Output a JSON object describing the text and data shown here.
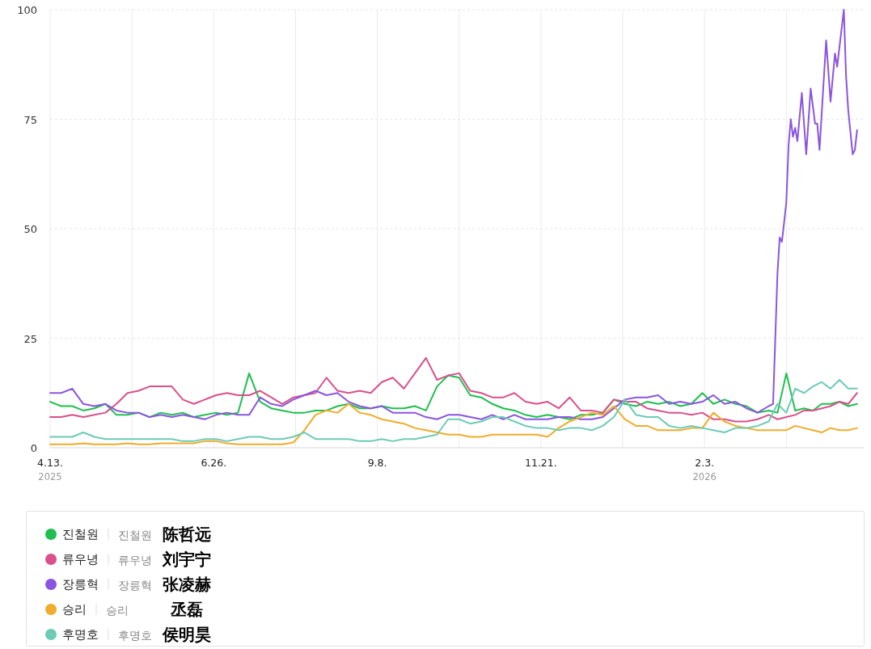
{
  "chart_data": {
    "type": "line",
    "x": [
      "2025-04-13",
      "2025-04-18",
      "2025-04-23",
      "2025-04-28",
      "2025-05-03",
      "2025-05-08",
      "2025-05-13",
      "2025-05-18",
      "2025-05-23",
      "2025-05-28",
      "2025-06-02",
      "2025-06-07",
      "2025-06-12",
      "2025-06-17",
      "2025-06-22",
      "2025-06-27",
      "2025-07-02",
      "2025-07-07",
      "2025-07-12",
      "2025-07-17",
      "2025-07-22",
      "2025-07-27",
      "2025-08-01",
      "2025-08-06",
      "2025-08-11",
      "2025-08-16",
      "2025-08-21",
      "2025-08-26",
      "2025-08-31",
      "2025-09-05",
      "2025-09-10",
      "2025-09-15",
      "2025-09-20",
      "2025-09-25",
      "2025-09-30",
      "2025-10-05",
      "2025-10-10",
      "2025-10-15",
      "2025-10-20",
      "2025-10-25",
      "2025-10-30",
      "2025-11-04",
      "2025-11-09",
      "2025-11-14",
      "2025-11-19",
      "2025-11-24",
      "2025-11-29",
      "2025-12-04",
      "2025-12-09",
      "2025-12-14",
      "2025-12-19",
      "2025-12-24",
      "2025-12-29",
      "2026-01-03",
      "2026-01-08",
      "2026-01-13",
      "2026-01-18",
      "2026-01-23",
      "2026-01-28",
      "2026-02-02",
      "2026-02-07",
      "2026-02-12",
      "2026-02-17",
      "2026-02-22",
      "2026-02-27",
      "2026-03-04",
      "2026-03-08",
      "2026-03-12",
      "2026-03-16",
      "2026-03-20",
      "2026-03-24",
      "2026-03-28",
      "2026-04-01",
      "2026-04-05",
      "2026-04-09",
      "2026-04-13"
    ],
    "series": [
      {
        "name": "진철원",
        "color": "#1fbf4f",
        "values": [
          10.5,
          9.5,
          9.5,
          8.5,
          9,
          10,
          7.5,
          7.5,
          8,
          7,
          8,
          7.5,
          8,
          7,
          7.5,
          8,
          7.5,
          8,
          17,
          10.5,
          9,
          8.5,
          8,
          8,
          8.5,
          8.5,
          9.5,
          10,
          9,
          9,
          9.5,
          9,
          9,
          9.5,
          8.5,
          14,
          16.5,
          16,
          12,
          11.5,
          10,
          9,
          8.5,
          7.5,
          7,
          7.5,
          7,
          6.5,
          7.5,
          7.5,
          8,
          11,
          10,
          9.5,
          10.5,
          10,
          10.5,
          9.5,
          10,
          12.5,
          10,
          11,
          10,
          9.5,
          8,
          8.5,
          8,
          17,
          8.5,
          9,
          8.5,
          10,
          10,
          10.5,
          9.5,
          10
        ]
      },
      {
        "name": "류우녕",
        "color": "#d9508a",
        "values": [
          7,
          7,
          7.5,
          7,
          7.5,
          8,
          10,
          12.5,
          13,
          14,
          14,
          14,
          11,
          10,
          11,
          12,
          12.5,
          12,
          12,
          13,
          11.5,
          10,
          11.5,
          12,
          12.5,
          16,
          13,
          12.5,
          13,
          12.5,
          15,
          16,
          13.5,
          17,
          20.5,
          15.5,
          16.5,
          17,
          13,
          12.5,
          11.5,
          11.5,
          12.5,
          10.5,
          10,
          10.5,
          9,
          11.5,
          8.5,
          8.5,
          8,
          11,
          10.5,
          10.5,
          9,
          8.5,
          8,
          8,
          7.5,
          8,
          6.5,
          6.5,
          6,
          6,
          6.5,
          7.5,
          6.5,
          7,
          7.5,
          8.5,
          8.5,
          9,
          9.5,
          10.5,
          10,
          12.5
        ]
      },
      {
        "name": "장릉혁",
        "color": "#8a55e0",
        "x": [
          "2025-04-13",
          "2025-04-18",
          "2025-04-23",
          "2025-04-28",
          "2025-05-03",
          "2025-05-08",
          "2025-05-13",
          "2025-05-18",
          "2025-05-23",
          "2025-05-28",
          "2025-06-02",
          "2025-06-07",
          "2025-06-12",
          "2025-06-17",
          "2025-06-22",
          "2025-06-27",
          "2025-07-02",
          "2025-07-07",
          "2025-07-12",
          "2025-07-17",
          "2025-07-22",
          "2025-07-27",
          "2025-08-01",
          "2025-08-06",
          "2025-08-11",
          "2025-08-16",
          "2025-08-21",
          "2025-08-26",
          "2025-08-31",
          "2025-09-05",
          "2025-09-10",
          "2025-09-15",
          "2025-09-20",
          "2025-09-25",
          "2025-09-30",
          "2025-10-05",
          "2025-10-10",
          "2025-10-15",
          "2025-10-20",
          "2025-10-25",
          "2025-10-30",
          "2025-11-04",
          "2025-11-09",
          "2025-11-14",
          "2025-11-19",
          "2025-11-24",
          "2025-11-29",
          "2025-12-04",
          "2025-12-09",
          "2025-12-14",
          "2025-12-19",
          "2025-12-24",
          "2025-12-29",
          "2026-01-03",
          "2026-01-08",
          "2026-01-13",
          "2026-01-18",
          "2026-01-23",
          "2026-01-28",
          "2026-02-02",
          "2026-02-07",
          "2026-02-12",
          "2026-02-17",
          "2026-02-22",
          "2026-02-27",
          "2026-03-04",
          "2026-03-06",
          "2026-03-08",
          "2026-03-09",
          "2026-03-10",
          "2026-03-12",
          "2026-03-13",
          "2026-03-14",
          "2026-03-15",
          "2026-03-16",
          "2026-03-17",
          "2026-03-19",
          "2026-03-21",
          "2026-03-23",
          "2026-03-25",
          "2026-03-26",
          "2026-03-27",
          "2026-03-30",
          "2026-04-01",
          "2026-04-03",
          "2026-04-04",
          "2026-04-07",
          "2026-04-08",
          "2026-04-09",
          "2026-04-11",
          "2026-04-12",
          "2026-04-13"
        ],
        "values": [
          12.5,
          12.5,
          13.5,
          10,
          9.5,
          10,
          8.5,
          8,
          8,
          7,
          7.5,
          7,
          7.5,
          7,
          6.5,
          7.5,
          8,
          7.5,
          7.5,
          11.5,
          10,
          9.5,
          11,
          12,
          13,
          12,
          12.5,
          10.5,
          9.5,
          9,
          9.5,
          8,
          8,
          8,
          7,
          6.5,
          7.5,
          7.5,
          7,
          6.5,
          7.5,
          6.5,
          7.5,
          6.5,
          6.5,
          6.5,
          7,
          7,
          6.5,
          6.5,
          7,
          9,
          11,
          11.5,
          11.5,
          12,
          10,
          10.5,
          10,
          10.5,
          12,
          10,
          10.5,
          9,
          8,
          9.5,
          10,
          40,
          48,
          47,
          56,
          69,
          75,
          71,
          73,
          70,
          81,
          67,
          82,
          74,
          74,
          68,
          93,
          79,
          90,
          87,
          100,
          85,
          77,
          67,
          68,
          72.5
        ]
      },
      {
        "name": "승리",
        "color": "#f0ac2a",
        "values": [
          0.8,
          0.8,
          0.8,
          1,
          0.8,
          0.8,
          0.8,
          1,
          0.8,
          0.8,
          1,
          1,
          1,
          1,
          1.5,
          1.5,
          1,
          0.8,
          0.8,
          0.8,
          0.8,
          0.8,
          1.2,
          4,
          7.5,
          8.5,
          8,
          10,
          8,
          7.5,
          6.5,
          6,
          5.5,
          4.5,
          4,
          3.5,
          3,
          3,
          2.5,
          2.5,
          3,
          3,
          3,
          3,
          3,
          2.5,
          4.5,
          6,
          7,
          8,
          7.5,
          9.5,
          6.5,
          5,
          5,
          4,
          4,
          4,
          4.5,
          4.5,
          8,
          6,
          5,
          4.5,
          4,
          4,
          4,
          4,
          5,
          4.5,
          4,
          3.5,
          4.5,
          4,
          4,
          4.5
        ]
      },
      {
        "name": "후명호",
        "color": "#6ccbb5",
        "values": [
          2.5,
          2.5,
          2.5,
          3.5,
          2.5,
          2,
          2,
          2,
          2,
          2,
          2,
          2,
          1.5,
          1.5,
          2,
          2,
          1.5,
          2,
          2.5,
          2.5,
          2,
          2,
          2.5,
          3.5,
          2,
          2,
          2,
          2,
          1.5,
          1.5,
          2,
          1.5,
          2,
          2,
          2.5,
          3,
          6.5,
          6.5,
          5.5,
          6,
          7,
          7,
          6,
          5,
          4.5,
          4.5,
          4,
          4.5,
          4.5,
          4,
          5,
          7,
          11,
          7.5,
          7,
          7,
          5,
          4.5,
          5,
          4.5,
          4,
          3.5,
          4.5,
          4.5,
          5,
          6,
          10,
          8,
          13.5,
          12.5,
          14,
          15,
          13.5,
          15.5,
          13.5,
          13.5
        ]
      }
    ],
    "xlim": [
      "2025-04-13",
      "2026-04-16"
    ],
    "xticks": [
      {
        "value": "2025-04-13",
        "label": "4.13.\n2025"
      },
      {
        "value": "2025-05-20",
        "label": null
      },
      {
        "value": "2025-06-26",
        "label": "6.26."
      },
      {
        "value": "2025-08-02",
        "label": null
      },
      {
        "value": "2025-09-08",
        "label": "9.8."
      },
      {
        "value": "2025-10-15",
        "label": null
      },
      {
        "value": "2025-11-21",
        "label": "11.21."
      },
      {
        "value": "2025-12-28",
        "label": null
      },
      {
        "value": "2026-02-03",
        "label": "2.3.\n2026"
      },
      {
        "value": "2026-03-12",
        "label": null
      }
    ],
    "ylim": [
      0,
      100
    ],
    "yticks": [
      0,
      25,
      50,
      75,
      100
    ],
    "grid": true,
    "legend": "bottom",
    "marker": "none",
    "line_style": "solid",
    "annotations": [
      "진철원",
      "陈哲远",
      "류우녕",
      "刘宇宁",
      "장릉혁",
      "张凌赫",
      "승리",
      "丞磊",
      "후명호",
      "侯明昊"
    ]
  }
}
